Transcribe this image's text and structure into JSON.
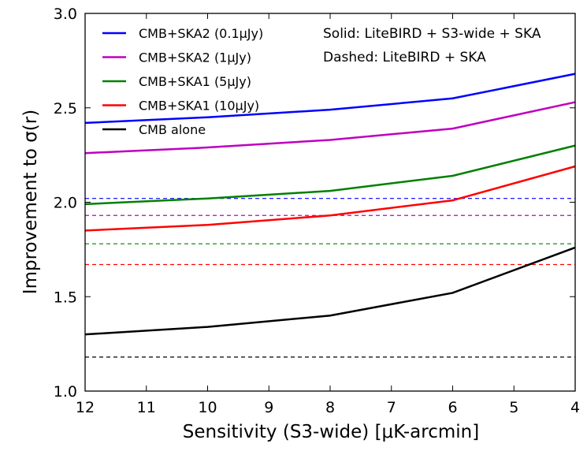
{
  "chart_data": {
    "type": "line",
    "title": "",
    "xlabel": "Sensitivity (S3-wide) [μK-arcmin]",
    "ylabel": "Improvement to σ(r)",
    "xlim": [
      12,
      4
    ],
    "ylim": [
      1.0,
      3.0
    ],
    "xticks": [
      12,
      11,
      10,
      9,
      8,
      7,
      6,
      5,
      4
    ],
    "yticks": [
      1.0,
      1.5,
      2.0,
      2.5,
      3.0
    ],
    "xtick_labels": [
      "12",
      "11",
      "10",
      "9",
      "8",
      "7",
      "6",
      "5",
      "4"
    ],
    "ytick_labels": [
      "1.0",
      "1.5",
      "2.0",
      "2.5",
      "3.0"
    ],
    "grid": false,
    "legend_position": "top-left",
    "annotations": [
      "Solid: LiteBIRD + S3-wide + SKA",
      "Dashed: LiteBIRD + SKA"
    ],
    "x": [
      12,
      10,
      8,
      6,
      4
    ],
    "series": [
      {
        "name": "CMB+SKA2 (0.1μJy)",
        "color": "#0000ff",
        "values": [
          2.42,
          2.45,
          2.49,
          2.55,
          2.68
        ],
        "dashed_value": 2.02
      },
      {
        "name": "CMB+SKA2 (1μJy)",
        "color": "#bf00bf",
        "values": [
          2.26,
          2.29,
          2.33,
          2.39,
          2.53
        ],
        "dashed_value": 1.93
      },
      {
        "name": "CMB+SKA1 (5μJy)",
        "color": "#008000",
        "values": [
          1.99,
          2.02,
          2.06,
          2.14,
          2.3
        ],
        "dashed_value": 1.78
      },
      {
        "name": "CMB+SKA1 (10μJy)",
        "color": "#ff0000",
        "values": [
          1.85,
          1.88,
          1.93,
          2.01,
          2.19
        ],
        "dashed_value": 1.67
      },
      {
        "name": "CMB alone",
        "color": "#000000",
        "values": [
          1.3,
          1.34,
          1.4,
          1.52,
          1.76
        ],
        "dashed_value": 1.18
      }
    ]
  }
}
